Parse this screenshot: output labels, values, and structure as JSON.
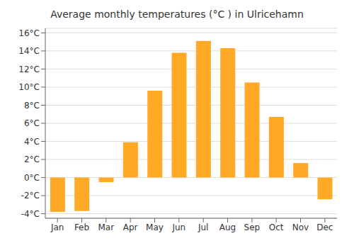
{
  "chart_data": {
    "type": "bar",
    "title": "Average monthly temperatures (°C ) in Ulricehamn",
    "categories": [
      "Jan",
      "Feb",
      "Mar",
      "Apr",
      "May",
      "Jun",
      "Jul",
      "Aug",
      "Sep",
      "Oct",
      "Nov",
      "Dec"
    ],
    "values": [
      -3.8,
      -3.7,
      -0.5,
      3.9,
      9.6,
      13.8,
      15.1,
      14.3,
      10.5,
      6.7,
      1.6,
      -2.4
    ],
    "color": "#FFA927",
    "ylim": [
      -4.5,
      16.5
    ],
    "yticks": [
      {
        "value": -4,
        "label": "-4°C"
      },
      {
        "value": -2,
        "label": "-2°C"
      },
      {
        "value": 0,
        "label": "0°C"
      },
      {
        "value": 2,
        "label": "2°C"
      },
      {
        "value": 4,
        "label": "4°C"
      },
      {
        "value": 6,
        "label": "6°C"
      },
      {
        "value": 8,
        "label": "8°C"
      },
      {
        "value": 10,
        "label": "10°C"
      },
      {
        "value": 12,
        "label": "12°C"
      },
      {
        "value": 14,
        "label": "14°C"
      },
      {
        "value": 16,
        "label": "16°C"
      }
    ],
    "grid": true
  }
}
